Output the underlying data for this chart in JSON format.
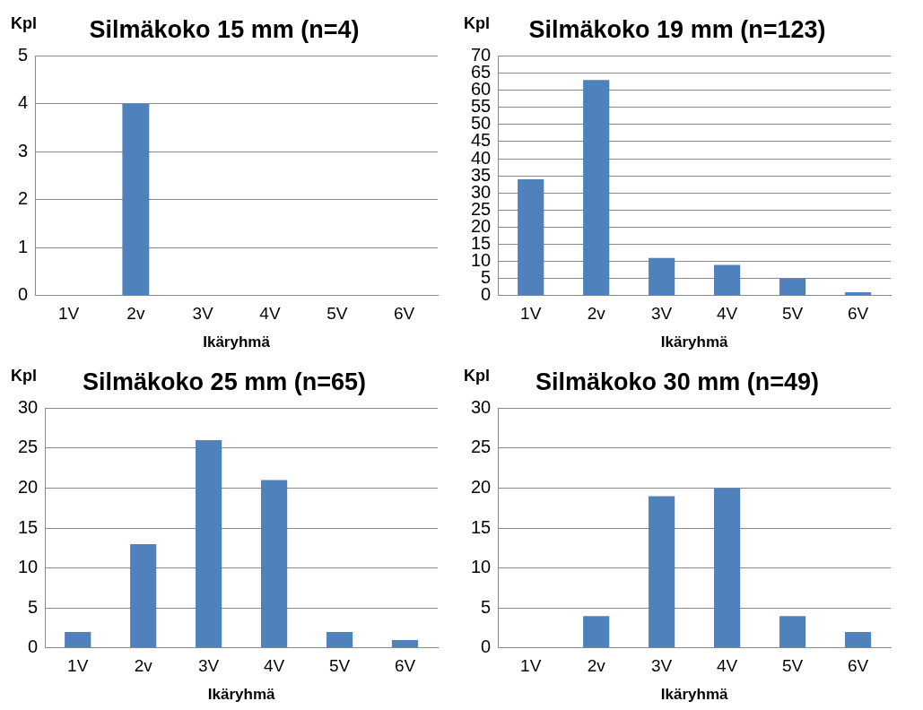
{
  "chart_data": [
    {
      "type": "bar",
      "title": "Silmäkoko 15 mm (n=4)",
      "xlabel": "Ikäryhmä",
      "ylabel": "Kpl",
      "categories": [
        "1V",
        "2v",
        "3V",
        "4V",
        "5V",
        "6V"
      ],
      "values": [
        0,
        4,
        0,
        0,
        0,
        0
      ],
      "color": "#4f81bd",
      "ylim": [
        0,
        5
      ],
      "yticks": [
        0,
        1,
        2,
        3,
        4,
        5
      ],
      "grid": "y",
      "legend": false
    },
    {
      "type": "bar",
      "title": "Silmäkoko 19 mm (n=123)",
      "xlabel": "Ikäryhmä",
      "ylabel": "Kpl",
      "categories": [
        "1V",
        "2v",
        "3V",
        "4V",
        "5V",
        "6V"
      ],
      "values": [
        34,
        63,
        11,
        9,
        5,
        1
      ],
      "color": "#4f81bd",
      "ylim": [
        0,
        70
      ],
      "yticks": [
        0,
        5,
        10,
        15,
        20,
        25,
        30,
        35,
        40,
        45,
        50,
        55,
        60,
        65,
        70
      ],
      "grid": "y",
      "legend": false
    },
    {
      "type": "bar",
      "title": "Silmäkoko 25 mm (n=65)",
      "xlabel": "Ikäryhmä",
      "ylabel": "Kpl",
      "categories": [
        "1V",
        "2v",
        "3V",
        "4V",
        "5V",
        "6V"
      ],
      "values": [
        2,
        13,
        26,
        21,
        2,
        1
      ],
      "color": "#4f81bd",
      "ylim": [
        0,
        30
      ],
      "yticks": [
        0,
        5,
        10,
        15,
        20,
        25,
        30
      ],
      "grid": "y",
      "legend": false
    },
    {
      "type": "bar",
      "title": "Silmäkoko 30 mm (n=49)",
      "xlabel": "Ikäryhmä",
      "ylabel": "Kpl",
      "categories": [
        "1V",
        "2v",
        "3V",
        "4V",
        "5V",
        "6V"
      ],
      "values": [
        0,
        4,
        19,
        20,
        4,
        2
      ],
      "color": "#4f81bd",
      "ylim": [
        0,
        30
      ],
      "yticks": [
        0,
        5,
        10,
        15,
        20,
        25,
        30
      ],
      "grid": "y",
      "legend": false
    }
  ]
}
